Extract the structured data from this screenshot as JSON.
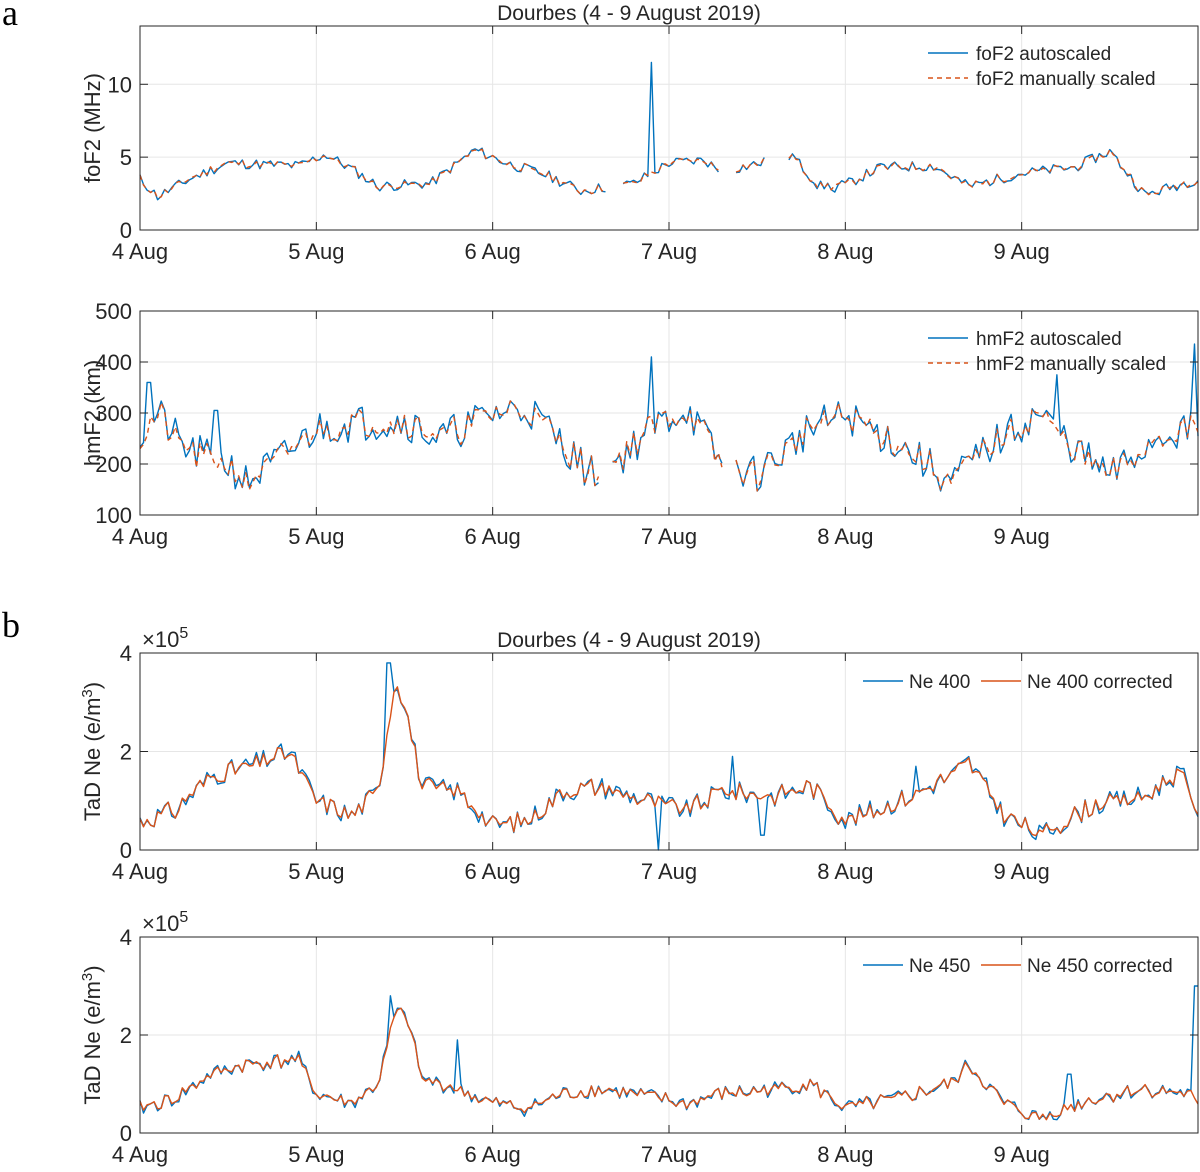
{
  "panel_labels": {
    "a": "a",
    "b": "b"
  },
  "colors": {
    "auto": "#0072BD",
    "manual": "#D95319",
    "grid": "#e6e6e6",
    "axis": "#262626"
  },
  "chart_data": [
    {
      "id": "fof2",
      "type": "line",
      "title": "Dourbes (4 - 9 August 2019)",
      "ylabel": "foF2 (MHz)",
      "xlabel": "",
      "xlim": [
        0,
        6
      ],
      "ylim": [
        0,
        14
      ],
      "yticks": [
        0,
        5,
        10
      ],
      "grid": true,
      "xticks": [
        "4 Aug",
        "5 Aug",
        "6 Aug",
        "7 Aug",
        "8 Aug",
        "9 Aug"
      ],
      "legend": "top-right",
      "series": [
        {
          "name": "foF2 autoscaled",
          "style": "solid",
          "seed": 11
        },
        {
          "name": "foF2 manually scaled",
          "style": "dashed",
          "seed": 12
        }
      ],
      "base": [
        [
          0,
          3.5
        ],
        [
          0.1,
          2.3
        ],
        [
          0.3,
          3.6
        ],
        [
          0.5,
          4.6
        ],
        [
          0.9,
          4.4
        ],
        [
          1.05,
          5.2
        ],
        [
          1.2,
          4.2
        ],
        [
          1.35,
          3.0
        ],
        [
          1.65,
          3.2
        ],
        [
          1.9,
          5.5
        ],
        [
          2.1,
          4.5
        ],
        [
          2.3,
          3.8
        ],
        [
          2.5,
          2.7
        ],
        [
          2.8,
          3.2
        ],
        [
          3.0,
          4.6
        ],
        [
          3.2,
          4.8
        ],
        [
          3.3,
          4.0
        ],
        [
          3.7,
          5.1
        ],
        [
          3.85,
          3.0
        ],
        [
          4.0,
          3.1
        ],
        [
          4.2,
          4.3
        ],
        [
          4.5,
          4.4
        ],
        [
          4.7,
          3.0
        ],
        [
          5.0,
          3.9
        ],
        [
          5.3,
          4.3
        ],
        [
          5.5,
          5.4
        ],
        [
          5.7,
          2.4
        ],
        [
          6.0,
          3.5
        ]
      ],
      "noise": 0.28,
      "gaps": [
        [
          2.66,
          2.72
        ],
        [
          3.3,
          3.36
        ],
        [
          3.55,
          3.66
        ]
      ],
      "spikes": [
        [
          2.9,
          11.5
        ],
        [
          3.94,
          2.6
        ]
      ],
      "yformat": "int"
    },
    {
      "id": "hmf2",
      "type": "line",
      "title": "",
      "ylabel": "hmF2 (km)",
      "xlabel": "",
      "xlim": [
        0,
        6
      ],
      "ylim": [
        100,
        500
      ],
      "yticks": [
        100,
        200,
        300,
        400,
        500
      ],
      "grid": true,
      "xticks": [
        "4 Aug",
        "5 Aug",
        "6 Aug",
        "7 Aug",
        "8 Aug",
        "9 Aug"
      ],
      "legend": "top-right",
      "series": [
        {
          "name": "hmF2 autoscaled",
          "style": "solid",
          "seed": 21
        },
        {
          "name": "hmF2 manually scaled",
          "style": "dashed",
          "seed": 22
        }
      ],
      "base": [
        [
          0,
          250
        ],
        [
          0.1,
          300
        ],
        [
          0.25,
          230
        ],
        [
          0.5,
          200
        ],
        [
          0.6,
          165
        ],
        [
          0.8,
          210
        ],
        [
          1.0,
          270
        ],
        [
          1.2,
          280
        ],
        [
          1.5,
          285
        ],
        [
          1.7,
          250
        ],
        [
          2.0,
          300
        ],
        [
          2.2,
          310
        ],
        [
          2.4,
          240
        ],
        [
          2.55,
          180
        ],
        [
          2.7,
          205
        ],
        [
          2.9,
          270
        ],
        [
          3.1,
          310
        ],
        [
          3.3,
          200
        ],
        [
          3.5,
          180
        ],
        [
          3.8,
          270
        ],
        [
          4.0,
          295
        ],
        [
          4.3,
          240
        ],
        [
          4.6,
          165
        ],
        [
          4.8,
          230
        ],
        [
          5.1,
          300
        ],
        [
          5.3,
          230
        ],
        [
          5.5,
          175
        ],
        [
          5.8,
          260
        ],
        [
          6.0,
          270
        ]
      ],
      "noise": 28,
      "gaps": [
        [
          2.62,
          2.66
        ],
        [
          3.31,
          3.36
        ]
      ],
      "spikes": [
        [
          0.05,
          360
        ],
        [
          0.43,
          305
        ],
        [
          2.9,
          410
        ],
        [
          5.2,
          375
        ],
        [
          5.98,
          435
        ]
      ],
      "yformat": "int"
    },
    {
      "id": "ne400",
      "type": "line",
      "title": "Dourbes (4 - 9 August 2019)",
      "ylabel": "TaD Ne (e/m3)",
      "xlabel": "",
      "xlim": [
        0,
        6
      ],
      "ylim": [
        0,
        4
      ],
      "yticks": [
        0,
        2,
        4
      ],
      "grid": true,
      "exponent": "×10^5",
      "xticks": [
        "4 Aug",
        "5 Aug",
        "6 Aug",
        "7 Aug",
        "8 Aug",
        "9 Aug"
      ],
      "legend": "top-right-horizontal",
      "series": [
        {
          "name": "Ne 400",
          "style": "solid",
          "seed": 31
        },
        {
          "name": "Ne 400 corrected",
          "style": "solid",
          "seed": 32
        }
      ],
      "base": [
        [
          0,
          0.6
        ],
        [
          0.2,
          0.8
        ],
        [
          0.4,
          1.5
        ],
        [
          0.6,
          1.7
        ],
        [
          0.85,
          2.0
        ],
        [
          1.0,
          1.0
        ],
        [
          1.2,
          0.7
        ],
        [
          1.35,
          1.2
        ],
        [
          1.45,
          3.5
        ],
        [
          1.5,
          3.0
        ],
        [
          1.6,
          1.3
        ],
        [
          1.8,
          1.2
        ],
        [
          2.0,
          0.5
        ],
        [
          2.2,
          0.6
        ],
        [
          2.4,
          1.2
        ],
        [
          2.6,
          1.3
        ],
        [
          2.8,
          1.1
        ],
        [
          3.1,
          0.8
        ],
        [
          3.3,
          1.2
        ],
        [
          3.6,
          1.1
        ],
        [
          3.8,
          1.3
        ],
        [
          4.0,
          0.6
        ],
        [
          4.3,
          1.0
        ],
        [
          4.6,
          1.5
        ],
        [
          4.7,
          1.8
        ],
        [
          4.9,
          0.7
        ],
        [
          5.1,
          0.3
        ],
        [
          5.4,
          0.9
        ],
        [
          5.7,
          1.1
        ],
        [
          5.9,
          1.6
        ],
        [
          6.0,
          0.8
        ]
      ],
      "noise": 0.17,
      "gaps": [],
      "spikes": [
        [
          1.41,
          3.8
        ],
        [
          2.94,
          0.0
        ],
        [
          3.36,
          1.9
        ],
        [
          3.53,
          0.3
        ],
        [
          4.4,
          1.7
        ]
      ],
      "yformat": "int"
    },
    {
      "id": "ne450",
      "type": "line",
      "title": "",
      "ylabel": "TaD Ne (e/m3)",
      "xlabel": "",
      "xlim": [
        0,
        6
      ],
      "ylim": [
        0,
        4
      ],
      "yticks": [
        0,
        2,
        4
      ],
      "grid": true,
      "exponent": "×10^5",
      "xticks": [
        "4 Aug",
        "5 Aug",
        "6 Aug",
        "7 Aug",
        "8 Aug",
        "9 Aug"
      ],
      "legend": "top-right-horizontal",
      "series": [
        {
          "name": "Ne 450",
          "style": "solid",
          "seed": 41
        },
        {
          "name": "Ne 450 corrected",
          "style": "solid",
          "seed": 42
        }
      ],
      "base": [
        [
          0,
          0.5
        ],
        [
          0.2,
          0.7
        ],
        [
          0.4,
          1.2
        ],
        [
          0.6,
          1.4
        ],
        [
          0.9,
          1.5
        ],
        [
          1.0,
          0.8
        ],
        [
          1.2,
          0.6
        ],
        [
          1.35,
          1.0
        ],
        [
          1.45,
          2.5
        ],
        [
          1.52,
          2.3
        ],
        [
          1.6,
          1.1
        ],
        [
          1.8,
          0.9
        ],
        [
          2.0,
          0.6
        ],
        [
          2.2,
          0.5
        ],
        [
          2.4,
          0.8
        ],
        [
          2.6,
          0.9
        ],
        [
          2.8,
          0.8
        ],
        [
          3.1,
          0.6
        ],
        [
          3.3,
          0.8
        ],
        [
          3.6,
          0.9
        ],
        [
          3.8,
          1.0
        ],
        [
          4.0,
          0.5
        ],
        [
          4.3,
          0.7
        ],
        [
          4.6,
          1.0
        ],
        [
          4.7,
          1.4
        ],
        [
          4.9,
          0.6
        ],
        [
          5.1,
          0.3
        ],
        [
          5.4,
          0.7
        ],
        [
          5.7,
          0.9
        ],
        [
          5.95,
          0.8
        ],
        [
          6.0,
          0.5
        ]
      ],
      "noise": 0.13,
      "gaps": [],
      "spikes": [
        [
          1.42,
          2.8
        ],
        [
          1.8,
          1.9
        ],
        [
          5.27,
          1.2
        ],
        [
          5.99,
          3.0
        ]
      ],
      "yformat": "int"
    }
  ]
}
